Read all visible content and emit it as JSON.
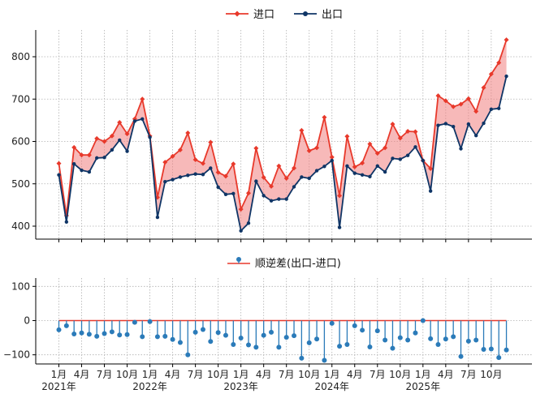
{
  "chart_data": [
    {
      "type": "line",
      "legend": {
        "position": "top-center"
      },
      "grid": true,
      "ylim": [
        370,
        860
      ],
      "yticks": [
        400,
        500,
        600,
        700,
        800
      ],
      "series": [
        {
          "name": "进口",
          "color": "#e8392b",
          "marker": "diamond",
          "values": [
            548,
            425,
            586,
            568,
            568,
            607,
            600,
            613,
            645,
            618,
            653,
            700,
            613,
            468,
            551,
            565,
            580,
            620,
            557,
            548,
            598,
            527,
            518,
            547,
            440,
            478,
            584,
            515,
            494,
            542,
            513,
            537,
            626,
            578,
            585,
            657,
            563,
            472,
            612,
            540,
            549,
            594,
            572,
            585,
            641,
            608,
            624,
            623,
            555,
            536,
            708,
            696,
            682,
            688,
            701,
            671,
            727,
            759,
            786,
            840
          ]
        },
        {
          "name": "出口",
          "color": "#0f3566",
          "marker": "circle",
          "values": [
            521,
            410,
            547,
            532,
            528,
            561,
            562,
            580,
            603,
            577,
            648,
            653,
            610,
            421,
            505,
            510,
            516,
            520,
            523,
            522,
            537,
            492,
            475,
            477,
            389,
            407,
            506,
            472,
            460,
            464,
            464,
            493,
            516,
            513,
            531,
            541,
            555,
            397,
            542,
            525,
            521,
            517,
            542,
            528,
            560,
            558,
            567,
            587,
            555,
            483,
            638,
            642,
            635,
            583,
            641,
            614,
            643,
            676,
            678,
            754
          ]
        }
      ],
      "fill_between": {
        "color": "#f08080",
        "opacity": 0.55
      }
    },
    {
      "type": "stem",
      "legend": {
        "position": "top-center"
      },
      "grid": true,
      "ylim": [
        -125,
        125
      ],
      "yticks": [
        -100,
        0,
        100
      ],
      "series": [
        {
          "name": "顺逆差(出口-进口)",
          "color": "#2b7bb9",
          "baseline_color": "#e8392b",
          "values": [
            -27,
            -15,
            -39,
            -36,
            -40,
            -46,
            -38,
            -33,
            -42,
            -41,
            -5,
            -47,
            -3,
            -47,
            -46,
            -55,
            -64,
            -100,
            -34,
            -26,
            -61,
            -35,
            -43,
            -70,
            -51,
            -71,
            -78,
            -43,
            -34,
            -78,
            -49,
            -44,
            -110,
            -65,
            -54,
            -116,
            -8,
            -75,
            -70,
            -15,
            -28,
            -77,
            -30,
            -57,
            -81,
            -50,
            -57,
            -36,
            0,
            -53,
            -70,
            -54,
            -47,
            -105,
            -60,
            -57,
            -84,
            -83,
            -108,
            -86
          ]
        }
      ]
    }
  ],
  "x_axis": {
    "start": "2021-01",
    "months": 60,
    "tick_labels": [
      "1月\n2021年",
      "4月",
      "7月",
      "10月",
      "1月\n2022年",
      "4月",
      "7月",
      "10月",
      "1月\n2023年",
      "4月",
      "7月",
      "10月",
      "1月\n2024年",
      "4月",
      "7月",
      "10月",
      "1月\n2025年",
      "4月",
      "7月",
      "10月"
    ]
  },
  "legend_labels": {
    "import": "进口",
    "export": "出口",
    "balance": "顺逆差(出口-进口)"
  },
  "y_tick_labels_top": [
    "400",
    "500",
    "600",
    "700",
    "800"
  ],
  "y_tick_labels_bottom": [
    "−100",
    "0",
    "100"
  ]
}
